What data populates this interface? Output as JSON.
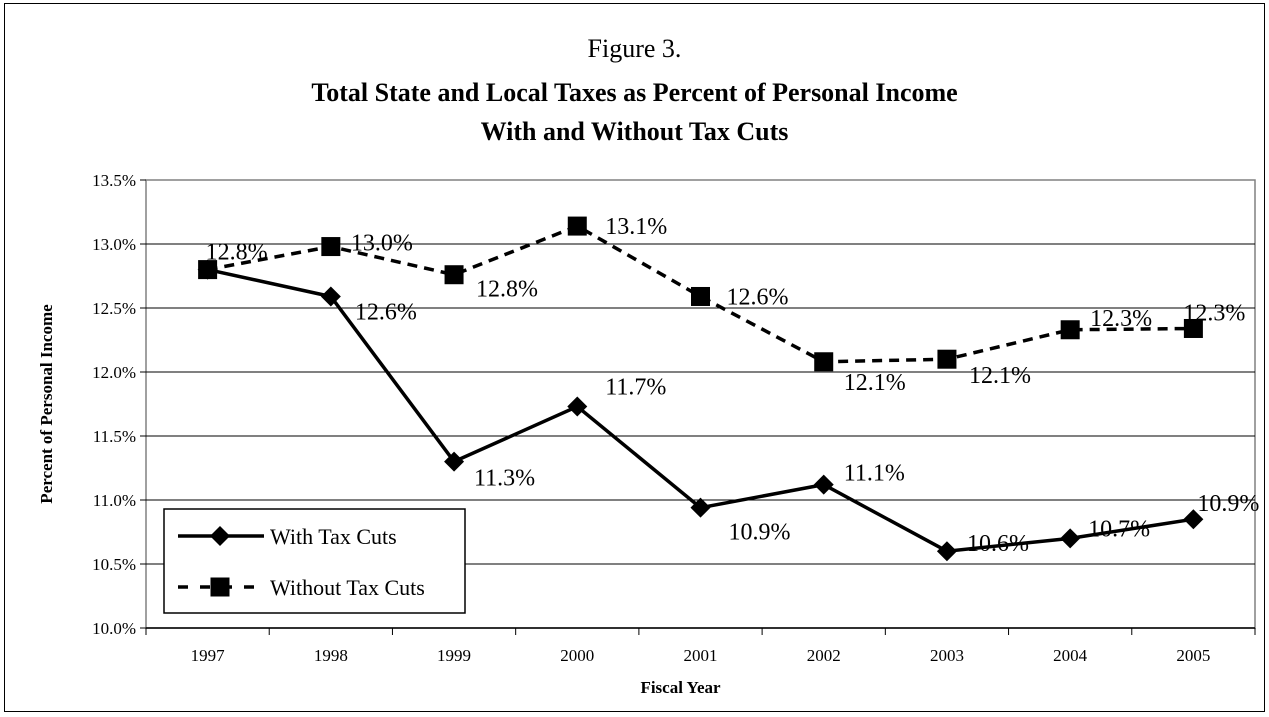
{
  "chart_data": {
    "type": "line",
    "title": "Figure 3.",
    "subtitle_lines": [
      "Total State and Local Taxes as Percent of Personal Income",
      "With and Without Tax Cuts"
    ],
    "xlabel": "Fiscal Year",
    "ylabel": "Percent of Personal Income",
    "categories": [
      "1997",
      "1998",
      "1999",
      "2000",
      "2001",
      "2002",
      "2003",
      "2004",
      "2005"
    ],
    "ylim": [
      10.0,
      13.5
    ],
    "yticks": [
      10.0,
      10.5,
      11.0,
      11.5,
      12.0,
      12.5,
      13.0,
      13.5
    ],
    "ytick_labels": [
      "10.0%",
      "10.5%",
      "11.0%",
      "11.5%",
      "12.0%",
      "12.5%",
      "13.0%",
      "13.5%"
    ],
    "grid": true,
    "legend_position": "bottom-left",
    "series": [
      {
        "name": "With Tax Cuts",
        "style": "solid",
        "marker": "diamond",
        "color": "#000000",
        "values": [
          12.8,
          12.59,
          11.3,
          11.73,
          10.94,
          11.12,
          10.6,
          10.7,
          10.85
        ],
        "labels": [
          "",
          "12.6%",
          "11.3%",
          "11.7%",
          "10.9%",
          "11.1%",
          "10.6%",
          "10.7%",
          "10.9%"
        ]
      },
      {
        "name": "Without Tax Cuts",
        "style": "dashed",
        "marker": "square",
        "color": "#000000",
        "values": [
          12.8,
          12.98,
          12.76,
          13.14,
          12.59,
          12.08,
          12.1,
          12.33,
          12.34
        ],
        "labels": [
          "12.8%",
          "13.0%",
          "12.8%",
          "13.1%",
          "12.6%",
          "12.1%",
          "12.1%",
          "12.3%",
          "12.3%"
        ]
      }
    ]
  }
}
